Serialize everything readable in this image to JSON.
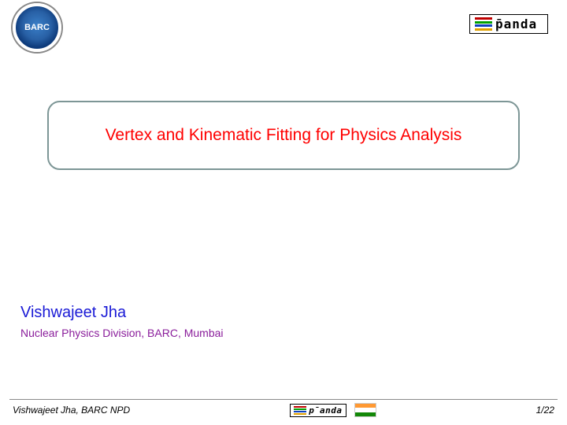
{
  "header": {
    "left_logo_label": "BARC",
    "right_logo_label": "p̄anda"
  },
  "title": {
    "text": "Vertex and Kinematic Fitting for Physics Analysis",
    "text_color": "#ff0000",
    "border_color": "#7d9696"
  },
  "author": {
    "name": "Vishwajeet Jha",
    "name_color": "#1a1ad6",
    "affiliation": "Nuclear Physics Division, BARC, Mumbai",
    "affiliation_color": "#8a1d9b"
  },
  "footer": {
    "left_text": "Vishwajeet Jha, BARC NPD",
    "page_counter": "1/22",
    "line_color": "#8a8a8a",
    "center_logo_label": "p̄anda",
    "flag_colors": {
      "top": "#ff9933",
      "middle": "#ffffff",
      "bottom": "#138808"
    }
  },
  "panda_bar_colors": [
    "#c00000",
    "#00a000",
    "#1040c0",
    "#e0a000"
  ],
  "barc_colors": {
    "bg1": "#3a7fc8",
    "bg2": "#2860a5",
    "bg3": "#0d3a7a"
  }
}
